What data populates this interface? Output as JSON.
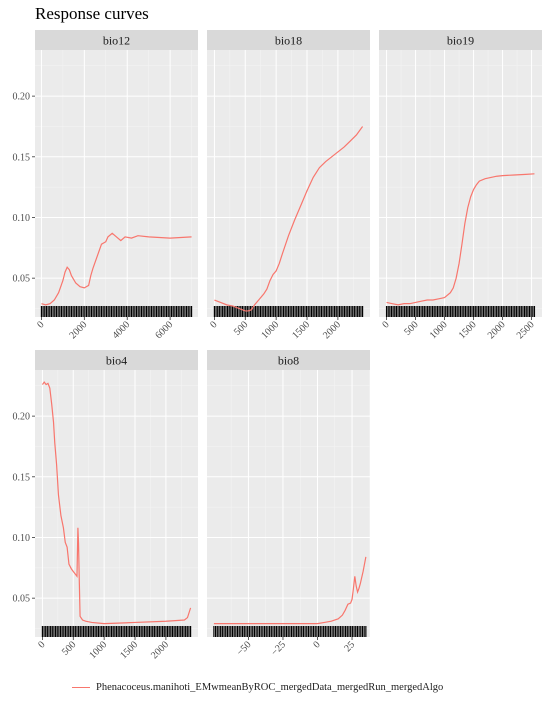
{
  "title": "Response curves",
  "legend_label": "Phenacoceus.manihoti_EMwmeanByROC_mergedData_mergedRun_mergedAlgo",
  "colors": {
    "line": "#F8766D",
    "panel_bg": "#EBEBEB",
    "strip_bg": "#D9D9D9",
    "grid_major": "#FFFFFF",
    "grid_minor": "#F5F5F5",
    "rug": "#000000"
  },
  "chart_data": [
    {
      "type": "line",
      "panel": "bio12",
      "x": [
        0,
        200,
        400,
        600,
        800,
        1000,
        1100,
        1200,
        1300,
        1400,
        1600,
        1800,
        2000,
        2100,
        2200,
        2300,
        2400,
        2600,
        2800,
        3000,
        3100,
        3300,
        3500,
        3700,
        3900,
        4200,
        4500,
        5000,
        6000,
        7000
      ],
      "y": [
        0.029,
        0.028,
        0.029,
        0.032,
        0.038,
        0.048,
        0.055,
        0.059,
        0.057,
        0.052,
        0.046,
        0.043,
        0.042,
        0.043,
        0.044,
        0.052,
        0.058,
        0.068,
        0.078,
        0.08,
        0.084,
        0.087,
        0.084,
        0.081,
        0.084,
        0.083,
        0.085,
        0.084,
        0.083,
        0.084
      ],
      "xlim": [
        -300,
        7300
      ],
      "ylim": [
        0.018,
        0.238
      ],
      "xticks": [
        0,
        2000,
        4000,
        6000
      ],
      "xtick_labels": [
        "0",
        "2000",
        "4000",
        "6000"
      ],
      "yticks": [
        0.05,
        0.1,
        0.15,
        0.2
      ],
      "ytick_labels": [
        "0.05",
        "0.10",
        "0.15",
        "0.20"
      ]
    },
    {
      "type": "line",
      "panel": "bio18",
      "x": [
        0,
        100,
        200,
        300,
        400,
        450,
        500,
        550,
        600,
        650,
        700,
        800,
        850,
        900,
        950,
        1000,
        1050,
        1100,
        1200,
        1300,
        1400,
        1500,
        1600,
        1700,
        1800,
        1900,
        2000,
        2100,
        2200,
        2300,
        2400
      ],
      "y": [
        0.032,
        0.03,
        0.028,
        0.027,
        0.025,
        0.024,
        0.023,
        0.023,
        0.024,
        0.028,
        0.031,
        0.037,
        0.041,
        0.048,
        0.053,
        0.056,
        0.062,
        0.07,
        0.085,
        0.098,
        0.11,
        0.122,
        0.133,
        0.141,
        0.146,
        0.15,
        0.154,
        0.158,
        0.163,
        0.168,
        0.175
      ],
      "xlim": [
        -120,
        2520
      ],
      "ylim": [
        0.018,
        0.238
      ],
      "xticks": [
        0,
        500,
        1000,
        1500,
        2000
      ],
      "xtick_labels": [
        "0",
        "500",
        "1000",
        "1500",
        "2000"
      ]
    },
    {
      "type": "line",
      "panel": "bio19",
      "x": [
        0,
        100,
        200,
        300,
        400,
        500,
        600,
        700,
        800,
        900,
        1000,
        1100,
        1150,
        1200,
        1250,
        1300,
        1350,
        1400,
        1450,
        1500,
        1550,
        1600,
        1700,
        1800,
        1900,
        2000,
        2200,
        2400,
        2550
      ],
      "y": [
        0.03,
        0.029,
        0.028,
        0.029,
        0.029,
        0.03,
        0.031,
        0.032,
        0.032,
        0.033,
        0.034,
        0.038,
        0.042,
        0.05,
        0.062,
        0.078,
        0.095,
        0.108,
        0.117,
        0.123,
        0.127,
        0.13,
        0.132,
        0.133,
        0.134,
        0.1345,
        0.135,
        0.1355,
        0.136
      ],
      "xlim": [
        -130,
        2680
      ],
      "ylim": [
        0.018,
        0.238
      ],
      "xticks": [
        0,
        500,
        1000,
        1500,
        2000,
        2500
      ],
      "xtick_labels": [
        "0",
        "500",
        "1000",
        "1500",
        "2000",
        "2500"
      ]
    },
    {
      "type": "line",
      "panel": "bio4",
      "x": [
        0,
        30,
        60,
        90,
        120,
        150,
        180,
        200,
        230,
        260,
        300,
        340,
        370,
        400,
        430,
        470,
        500,
        530,
        560,
        575,
        585,
        595,
        610,
        650,
        700,
        800,
        1000,
        1500,
        2000,
        2300,
        2350,
        2400
      ],
      "y": [
        0.226,
        0.228,
        0.226,
        0.227,
        0.223,
        0.21,
        0.195,
        0.178,
        0.16,
        0.135,
        0.118,
        0.108,
        0.096,
        0.092,
        0.078,
        0.074,
        0.072,
        0.07,
        0.068,
        0.108,
        0.095,
        0.07,
        0.035,
        0.032,
        0.031,
        0.03,
        0.029,
        0.03,
        0.031,
        0.032,
        0.034,
        0.042
      ],
      "xlim": [
        -120,
        2520
      ],
      "ylim": [
        0.018,
        0.238
      ],
      "xticks": [
        0,
        500,
        1000,
        1500,
        2000
      ],
      "xtick_labels": [
        "0",
        "500",
        "1000",
        "1500",
        "2000"
      ],
      "yticks": [
        0.05,
        0.1,
        0.15,
        0.2
      ],
      "ytick_labels": [
        "0.05",
        "0.10",
        "0.15",
        "0.20"
      ]
    },
    {
      "type": "line",
      "panel": "bio8",
      "x": [
        -75,
        -60,
        -40,
        -20,
        0,
        5,
        10,
        15,
        18,
        20,
        22,
        24,
        25,
        26,
        27,
        28,
        29,
        30,
        31,
        32,
        33,
        34,
        35
      ],
      "y": [
        0.029,
        0.029,
        0.029,
        0.029,
        0.029,
        0.03,
        0.031,
        0.033,
        0.036,
        0.04,
        0.045,
        0.046,
        0.049,
        0.058,
        0.068,
        0.06,
        0.055,
        0.058,
        0.062,
        0.067,
        0.072,
        0.078,
        0.084
      ],
      "xlim": [
        -80,
        38
      ],
      "ylim": [
        0.018,
        0.238
      ],
      "xticks": [
        -50,
        -25,
        0,
        25
      ],
      "xtick_labels": [
        "−50",
        "−25",
        "0",
        "25"
      ]
    }
  ]
}
